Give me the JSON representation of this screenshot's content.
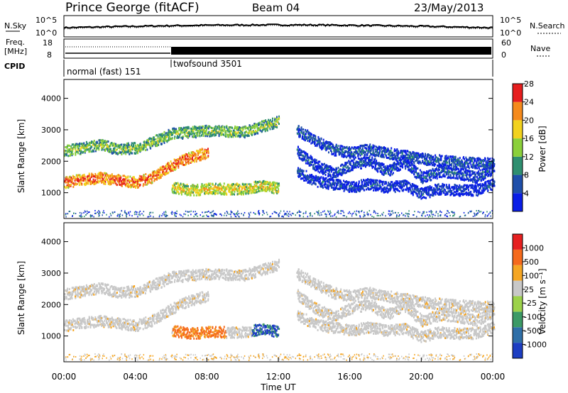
{
  "header": {
    "station": "Prince George (fitACF)",
    "beam": "Beam 04",
    "date": "23/May/2013"
  },
  "noise_panel": {
    "left_label": "N.Sky",
    "right_label": "N.Search",
    "left_ticks": [
      "10^5",
      "10^0"
    ],
    "right_ticks": [
      "10^5",
      "10^0"
    ]
  },
  "freq_panel": {
    "left_label_1": "Freq.",
    "left_label_2": "[MHz]",
    "right_label": "Nave",
    "left_ticks": [
      "18",
      "8"
    ],
    "right_ticks": [
      "60",
      "0"
    ]
  },
  "cpid": {
    "label": "CPID",
    "modes": [
      "normal (fast) 151",
      "twofsound 3501"
    ]
  },
  "chart_data": [
    {
      "type": "heatmap",
      "panel": "power",
      "ylabel": "Slant Range [km]",
      "xlabel": "",
      "ylim": [
        180,
        4600
      ],
      "yticks": [
        "1000",
        "2000",
        "3000",
        "4000"
      ],
      "colorbar": {
        "label": "Power [dB]",
        "ticks": [
          "4",
          "8",
          "12",
          "16",
          "20",
          "24",
          "28"
        ],
        "colors": [
          "#0a1ee6",
          "#1f4faa",
          "#2f8f70",
          "#8bd03a",
          "#f2d21e",
          "#f58a1c",
          "#e61e1e"
        ]
      },
      "bands": [
        {
          "name": "main",
          "points": [
            [
              0,
              1350
            ],
            [
              1,
              1450
            ],
            [
              2,
              1500
            ],
            [
              3,
              1420
            ],
            [
              4,
              1350
            ],
            [
              5,
              1550
            ],
            [
              6,
              1900
            ],
            [
              7,
              2150
            ],
            [
              8,
              2300
            ]
          ],
          "level": 26
        },
        {
          "name": "upper",
          "points": [
            [
              0,
              2350
            ],
            [
              1,
              2450
            ],
            [
              2,
              2550
            ],
            [
              3,
              2400
            ],
            [
              4,
              2450
            ],
            [
              5,
              2650
            ],
            [
              6,
              2900
            ],
            [
              8,
              3000
            ],
            [
              10,
              2950
            ],
            [
              12,
              3300
            ]
          ],
          "level": 16
        },
        {
          "name": "late1",
          "points": [
            [
              13,
              2350
            ],
            [
              14,
              1900
            ],
            [
              15,
              1650
            ],
            [
              16,
              1900
            ],
            [
              17,
              2050
            ],
            [
              18,
              1700
            ],
            [
              19,
              2000
            ],
            [
              20,
              1500
            ],
            [
              21,
              1700
            ],
            [
              22,
              1650
            ],
            [
              23,
              1500
            ],
            [
              24,
              1800
            ]
          ],
          "level": 8
        },
        {
          "name": "late2",
          "points": [
            [
              13,
              1700
            ],
            [
              14,
              1400
            ],
            [
              15,
              1300
            ],
            [
              16,
              1200
            ],
            [
              17,
              1300
            ],
            [
              18,
              1200
            ],
            [
              19,
              1250
            ],
            [
              20,
              1000
            ],
            [
              21,
              1150
            ],
            [
              22,
              1100
            ],
            [
              23,
              1100
            ],
            [
              24,
              1300
            ]
          ],
          "level": 7
        },
        {
          "name": "late3",
          "points": [
            [
              13,
              3000
            ],
            [
              14,
              2700
            ],
            [
              15,
              2400
            ],
            [
              16,
              2300
            ],
            [
              17,
              2400
            ],
            [
              19,
              2200
            ],
            [
              20,
              2100
            ],
            [
              22,
              2000
            ],
            [
              24,
              1950
            ]
          ],
          "level": 9
        },
        {
          "name": "mid",
          "points": [
            [
              6,
              1200
            ],
            [
              7,
              1100
            ],
            [
              8,
              1150
            ],
            [
              9,
              1150
            ],
            [
              10,
              1150
            ],
            [
              11,
              1250
            ],
            [
              12,
              1150
            ]
          ],
          "level": 20
        }
      ]
    },
    {
      "type": "heatmap",
      "panel": "velocity",
      "ylabel": "Slant Range [km]",
      "xlabel": "Time UT",
      "ylim": [
        180,
        4600
      ],
      "yticks": [
        "1000",
        "2000",
        "3000",
        "4000"
      ],
      "xticks": [
        "00:00",
        "04:00",
        "08:00",
        "12:00",
        "16:00",
        "20:00",
        "00:00"
      ],
      "colorbar": {
        "label": "Velocity [m s⁻¹]",
        "ticks": [
          "1000",
          "500",
          "100",
          "25",
          "-25",
          "-100",
          "-500",
          "-1000"
        ],
        "colors": [
          "#1d3ec2",
          "#2f6fa8",
          "#3c9a66",
          "#9cd24a",
          "#c8c8c8",
          "#f5a623",
          "#f56a1c",
          "#e62020"
        ]
      }
    }
  ]
}
